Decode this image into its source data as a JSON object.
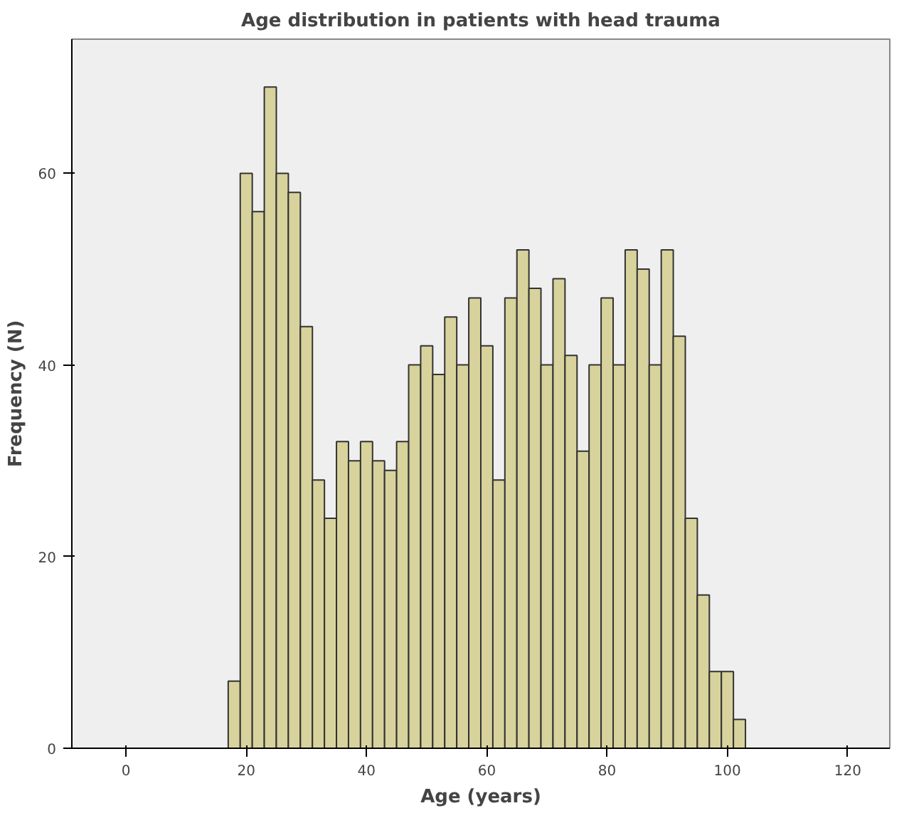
{
  "chart_data": {
    "type": "histogram",
    "title": "Age distribution in patients with head trauma",
    "xlabel": "Age (years)",
    "ylabel": "Frequency (N)",
    "bins": [
      17,
      19,
      21,
      23,
      25,
      27,
      29,
      31,
      33,
      35,
      37,
      39,
      41,
      43,
      45,
      47,
      49,
      51,
      53,
      55,
      57,
      59,
      61,
      63,
      65,
      67,
      69,
      71,
      73,
      75,
      77,
      79,
      81,
      83,
      85,
      87,
      89,
      91,
      93,
      95,
      97,
      99,
      101,
      103
    ],
    "values": [
      7,
      60,
      56,
      69,
      60,
      58,
      44,
      28,
      24,
      32,
      30,
      32,
      30,
      29,
      32,
      40,
      42,
      39,
      45,
      40,
      47,
      42,
      28,
      47,
      52,
      48,
      40,
      49,
      41,
      31,
      40,
      47,
      40,
      52,
      50,
      40,
      52,
      43,
      24,
      16,
      8,
      8,
      3
    ],
    "color": "#d8d39c",
    "xlim": [
      -9,
      127
    ],
    "ylim": [
      0,
      74
    ],
    "xticks": [
      0,
      20,
      40,
      60,
      80,
      100,
      120
    ],
    "yticks": [
      0,
      20,
      40,
      60
    ],
    "grid": false
  }
}
